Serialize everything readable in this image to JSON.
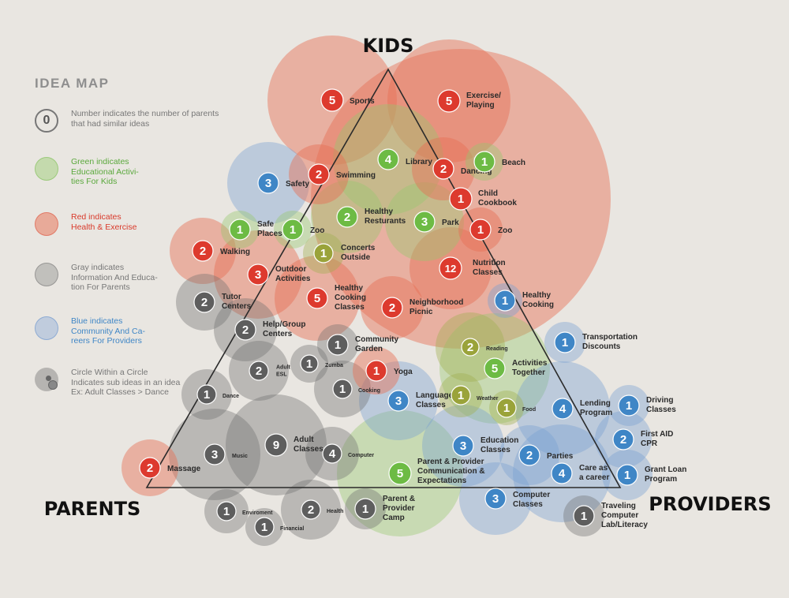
{
  "corners": {
    "kids": "KIDS",
    "parents": "PARENTS",
    "providers": "PROVIDERS"
  },
  "legend": {
    "title": "IDEA MAP",
    "items": [
      {
        "key": "number",
        "sample": "0",
        "text": "Number indicates the number of parents\nthat had similar ideas",
        "color": "#777777"
      },
      {
        "key": "green",
        "text": "Green indicates\nEducational Activi-\nties For Kids",
        "color": "#5aa83c"
      },
      {
        "key": "red",
        "text": "Red indicates\nHealth & Exercise",
        "color": "#d93a2b"
      },
      {
        "key": "gray",
        "text": "Gray indicates\nInformation And Educa-\ntion For Parents",
        "color": "#777777"
      },
      {
        "key": "blue",
        "text": "Blue indicates\nCommunity And Ca-\nreers For Providers",
        "color": "#3f86c6"
      },
      {
        "key": "nested",
        "text": "Circle Within a Circle\nIndicates sub ideas in an idea\nEx: Adult Classes > Dance",
        "color": "#777777"
      }
    ]
  },
  "colors": {
    "red": "#dd3a2e",
    "green": "#6dbb44",
    "gray": "#5e5e5e",
    "blue": "#3f86c6",
    "olive": "#9aa33a",
    "red_bubble": "rgba(231,110,85,0.45)",
    "green_bubble": "rgba(150,200,110,0.40)",
    "gray_bubble": "rgba(110,110,110,0.38)",
    "blue_bubble": "rgba(120,160,210,0.40)",
    "olive_bubble": "rgba(160,175,80,0.40)"
  },
  "ideas": [
    {
      "n": "5",
      "label": "Sports",
      "cat": "red"
    },
    {
      "n": "5",
      "label": "Exercise/\nPlaying",
      "cat": "red"
    },
    {
      "n": "4",
      "label": "Library",
      "cat": "green"
    },
    {
      "n": "2",
      "label": "Dancing",
      "cat": "red"
    },
    {
      "n": "1",
      "label": "Beach",
      "cat": "green"
    },
    {
      "n": "3",
      "label": "Safety",
      "cat": "blue"
    },
    {
      "n": "2",
      "label": "Swimming",
      "cat": "red"
    },
    {
      "n": "1",
      "label": "Child\nCookbook",
      "cat": "red"
    },
    {
      "n": "2",
      "label": "Healthy\nResturants",
      "cat": "green"
    },
    {
      "n": "3",
      "label": "Park",
      "cat": "green"
    },
    {
      "n": "1",
      "label": "Zoo",
      "cat": "red"
    },
    {
      "n": "1",
      "label": "Safe\nPlaces",
      "cat": "green"
    },
    {
      "n": "1",
      "label": "Zoo",
      "cat": "green"
    },
    {
      "n": "2",
      "label": "Walking",
      "cat": "red"
    },
    {
      "n": "1",
      "label": "Concerts\nOutside",
      "cat": "olive"
    },
    {
      "n": "12",
      "label": "Nutrition\nClasses",
      "cat": "red"
    },
    {
      "n": "3",
      "label": "Outdoor\nActivities",
      "cat": "red"
    },
    {
      "n": "2",
      "label": "Tutor\nCenters",
      "cat": "gray"
    },
    {
      "n": "5",
      "label": "Healthy\nCooking\nClasses",
      "cat": "red"
    },
    {
      "n": "2",
      "label": "Neighborhood\nPicnic",
      "cat": "red"
    },
    {
      "n": "1",
      "label": "Healthy\nCooking",
      "cat": "blue"
    },
    {
      "n": "2",
      "label": "Help/Group\nCenters",
      "cat": "gray"
    },
    {
      "n": "1",
      "label": "Community\nGarden",
      "cat": "gray"
    },
    {
      "n": "1",
      "label": "Transportation\nDiscounts",
      "cat": "blue"
    },
    {
      "n": "2",
      "label": "Reading",
      "cat": "olive",
      "sub": true
    },
    {
      "n": "2",
      "label": "Adult\nESL",
      "cat": "gray",
      "sub": true
    },
    {
      "n": "1",
      "label": "Zumba",
      "cat": "gray",
      "sub": true
    },
    {
      "n": "1",
      "label": "Yoga",
      "cat": "red"
    },
    {
      "n": "5",
      "label": "Activities\nTogether",
      "cat": "green"
    },
    {
      "n": "1",
      "label": "Dance",
      "cat": "gray",
      "sub": true
    },
    {
      "n": "1",
      "label": "Cooking",
      "cat": "gray",
      "sub": true
    },
    {
      "n": "3",
      "label": "Language\nClasses",
      "cat": "blue"
    },
    {
      "n": "1",
      "label": "Weather",
      "cat": "olive",
      "sub": true
    },
    {
      "n": "1",
      "label": "Food",
      "cat": "olive",
      "sub": true
    },
    {
      "n": "4",
      "label": "Lending\nProgram",
      "cat": "blue"
    },
    {
      "n": "1",
      "label": "Driving\nClasses",
      "cat": "blue"
    },
    {
      "n": "9",
      "label": "Adult\nClasses",
      "cat": "gray"
    },
    {
      "n": "4",
      "label": "Computer",
      "cat": "gray",
      "sub": true
    },
    {
      "n": "3",
      "label": "Music",
      "cat": "gray",
      "sub": true
    },
    {
      "n": "3",
      "label": "Education\nClasses",
      "cat": "blue"
    },
    {
      "n": "2",
      "label": "Parties",
      "cat": "blue"
    },
    {
      "n": "2",
      "label": "First AID\nCPR",
      "cat": "blue"
    },
    {
      "n": "2",
      "label": "Massage",
      "cat": "red"
    },
    {
      "n": "5",
      "label": "Parent & Provider\nCommunication &\nExpectations",
      "cat": "green"
    },
    {
      "n": "4",
      "label": "Care as\na career",
      "cat": "blue"
    },
    {
      "n": "1",
      "label": "Grant Loan\nProgram",
      "cat": "blue"
    },
    {
      "n": "3",
      "label": "Computer\nClasses",
      "cat": "blue"
    },
    {
      "n": "1",
      "label": "Enviroment",
      "cat": "gray",
      "sub": true
    },
    {
      "n": "2",
      "label": "Health",
      "cat": "gray",
      "sub": true
    },
    {
      "n": "1",
      "label": "Parent &\nProvider\nCamp",
      "cat": "gray"
    },
    {
      "n": "1",
      "label": "Financial",
      "cat": "gray",
      "sub": true
    },
    {
      "n": "1",
      "label": "Traveling\nComputer\nLab/Literacy",
      "cat": "gray"
    }
  ]
}
